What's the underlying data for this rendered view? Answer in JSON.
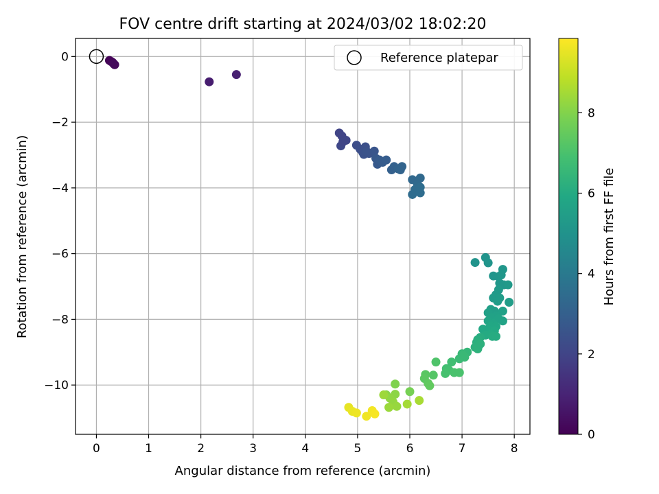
{
  "chart_data": {
    "type": "scatter",
    "title": "FOV centre drift starting at 2024/03/02 18:02:20",
    "xlabel": "Angular distance from reference (arcmin)",
    "ylabel": "Rotation from reference (arcmin)",
    "xlim": [
      -0.4,
      8.3
    ],
    "ylim": [
      -11.5,
      0.55
    ],
    "xticks": [
      "0",
      "1",
      "2",
      "3",
      "4",
      "5",
      "6",
      "7",
      "8"
    ],
    "yticks": [
      "0",
      "−2",
      "−4",
      "−6",
      "−8",
      "−10"
    ],
    "grid": true,
    "legend": {
      "position": "top-right",
      "entries": [
        "Reference platepar"
      ]
    },
    "reference": {
      "x": 0,
      "y": 0
    },
    "colorbar": {
      "label": "Hours from first FF file",
      "colormap": "viridis",
      "range": [
        0,
        9.85
      ],
      "ticks": [
        "0",
        "2",
        "4",
        "6",
        "8"
      ]
    },
    "series": [
      {
        "points": [
          {
            "x": 0.25,
            "y": -0.12,
            "c": 0.05
          },
          {
            "x": 0.28,
            "y": -0.15,
            "c": 0.1
          },
          {
            "x": 0.31,
            "y": -0.18,
            "c": 0.15
          },
          {
            "x": 0.35,
            "y": -0.25,
            "c": 0.2
          },
          {
            "x": 0.33,
            "y": -0.22,
            "c": 0.25
          },
          {
            "x": 2.16,
            "y": -0.77,
            "c": 0.8
          },
          {
            "x": 2.68,
            "y": -0.55,
            "c": 0.9
          },
          {
            "x": 4.65,
            "y": -2.33,
            "c": 2.0
          },
          {
            "x": 4.7,
            "y": -2.42,
            "c": 2.0
          },
          {
            "x": 4.78,
            "y": -2.55,
            "c": 2.05
          },
          {
            "x": 4.68,
            "y": -2.72,
            "c": 2.1
          },
          {
            "x": 4.72,
            "y": -2.6,
            "c": 2.05
          },
          {
            "x": 4.98,
            "y": -2.7,
            "c": 2.3
          },
          {
            "x": 5.05,
            "y": -2.82,
            "c": 2.35
          },
          {
            "x": 5.1,
            "y": -2.92,
            "c": 2.4
          },
          {
            "x": 5.15,
            "y": -2.75,
            "c": 2.4
          },
          {
            "x": 5.12,
            "y": -2.98,
            "c": 2.45
          },
          {
            "x": 5.18,
            "y": -2.9,
            "c": 2.5
          },
          {
            "x": 5.22,
            "y": -2.95,
            "c": 2.5
          },
          {
            "x": 5.32,
            "y": -2.88,
            "c": 2.6
          },
          {
            "x": 5.35,
            "y": -3.1,
            "c": 2.7
          },
          {
            "x": 5.38,
            "y": -3.28,
            "c": 2.75
          },
          {
            "x": 5.42,
            "y": -3.15,
            "c": 2.8
          },
          {
            "x": 5.48,
            "y": -3.22,
            "c": 2.85
          },
          {
            "x": 5.55,
            "y": -3.15,
            "c": 2.9
          },
          {
            "x": 5.65,
            "y": -3.45,
            "c": 3.0
          },
          {
            "x": 5.7,
            "y": -3.35,
            "c": 3.05
          },
          {
            "x": 5.78,
            "y": -3.42,
            "c": 3.1
          },
          {
            "x": 5.82,
            "y": -3.45,
            "c": 3.15
          },
          {
            "x": 5.85,
            "y": -3.35,
            "c": 3.15
          },
          {
            "x": 6.05,
            "y": -3.75,
            "c": 3.3
          },
          {
            "x": 6.2,
            "y": -3.7,
            "c": 3.35
          },
          {
            "x": 6.15,
            "y": -3.9,
            "c": 3.4
          },
          {
            "x": 6.1,
            "y": -4.05,
            "c": 3.45
          },
          {
            "x": 6.05,
            "y": -4.2,
            "c": 3.45
          },
          {
            "x": 6.2,
            "y": -3.98,
            "c": 3.5
          },
          {
            "x": 6.2,
            "y": -4.15,
            "c": 3.5
          },
          {
            "x": 7.25,
            "y": -6.27,
            "c": 5.0
          },
          {
            "x": 7.45,
            "y": -6.12,
            "c": 5.0
          },
          {
            "x": 7.5,
            "y": -6.28,
            "c": 5.05
          },
          {
            "x": 7.6,
            "y": -6.68,
            "c": 5.1
          },
          {
            "x": 7.7,
            "y": -6.7,
            "c": 5.1
          },
          {
            "x": 7.78,
            "y": -6.48,
            "c": 5.15
          },
          {
            "x": 7.75,
            "y": -6.65,
            "c": 5.15
          },
          {
            "x": 7.72,
            "y": -6.9,
            "c": 5.2
          },
          {
            "x": 7.8,
            "y": -6.95,
            "c": 5.2
          },
          {
            "x": 7.88,
            "y": -6.95,
            "c": 5.25
          },
          {
            "x": 7.7,
            "y": -7.1,
            "c": 5.3
          },
          {
            "x": 7.65,
            "y": -7.25,
            "c": 5.3
          },
          {
            "x": 7.6,
            "y": -7.35,
            "c": 5.35
          },
          {
            "x": 7.72,
            "y": -7.35,
            "c": 5.4
          },
          {
            "x": 7.68,
            "y": -7.45,
            "c": 5.4
          },
          {
            "x": 7.9,
            "y": -7.48,
            "c": 5.45
          },
          {
            "x": 7.55,
            "y": -7.7,
            "c": 5.5
          },
          {
            "x": 7.62,
            "y": -7.75,
            "c": 5.5
          },
          {
            "x": 7.5,
            "y": -7.8,
            "c": 5.55
          },
          {
            "x": 7.78,
            "y": -7.75,
            "c": 5.6
          },
          {
            "x": 7.65,
            "y": -7.9,
            "c": 5.6
          },
          {
            "x": 7.55,
            "y": -7.95,
            "c": 5.65
          },
          {
            "x": 7.7,
            "y": -7.98,
            "c": 5.7
          },
          {
            "x": 7.78,
            "y": -8.05,
            "c": 5.7
          },
          {
            "x": 7.5,
            "y": -8.05,
            "c": 5.75
          },
          {
            "x": 7.6,
            "y": -8.12,
            "c": 5.8
          },
          {
            "x": 7.55,
            "y": -8.2,
            "c": 5.85
          },
          {
            "x": 7.65,
            "y": -8.22,
            "c": 5.85
          },
          {
            "x": 7.4,
            "y": -8.3,
            "c": 5.9
          },
          {
            "x": 7.5,
            "y": -8.3,
            "c": 5.9
          },
          {
            "x": 7.62,
            "y": -8.35,
            "c": 5.95
          },
          {
            "x": 7.55,
            "y": -8.45,
            "c": 6.0
          },
          {
            "x": 7.45,
            "y": -8.48,
            "c": 6.0
          },
          {
            "x": 7.58,
            "y": -8.52,
            "c": 6.05
          },
          {
            "x": 7.65,
            "y": -8.52,
            "c": 6.05
          },
          {
            "x": 7.35,
            "y": -8.55,
            "c": 6.1
          },
          {
            "x": 7.3,
            "y": -8.62,
            "c": 6.15
          },
          {
            "x": 7.28,
            "y": -8.7,
            "c": 6.2
          },
          {
            "x": 7.32,
            "y": -8.8,
            "c": 6.2
          },
          {
            "x": 7.25,
            "y": -8.85,
            "c": 6.25
          },
          {
            "x": 7.3,
            "y": -8.9,
            "c": 6.3
          },
          {
            "x": 7.35,
            "y": -8.75,
            "c": 6.25
          },
          {
            "x": 7.1,
            "y": -9.0,
            "c": 6.5
          },
          {
            "x": 7.0,
            "y": -9.05,
            "c": 6.55
          },
          {
            "x": 7.05,
            "y": -9.15,
            "c": 6.6
          },
          {
            "x": 6.95,
            "y": -9.2,
            "c": 6.65
          },
          {
            "x": 7.02,
            "y": -9.1,
            "c": 6.6
          },
          {
            "x": 6.8,
            "y": -9.3,
            "c": 6.8
          },
          {
            "x": 6.7,
            "y": -9.5,
            "c": 6.85
          },
          {
            "x": 6.75,
            "y": -9.55,
            "c": 6.9
          },
          {
            "x": 6.68,
            "y": -9.65,
            "c": 6.95
          },
          {
            "x": 6.85,
            "y": -9.62,
            "c": 7.0
          },
          {
            "x": 6.95,
            "y": -9.62,
            "c": 7.0
          },
          {
            "x": 6.5,
            "y": -9.3,
            "c": 7.1
          },
          {
            "x": 6.45,
            "y": -9.7,
            "c": 7.2
          },
          {
            "x": 6.3,
            "y": -9.68,
            "c": 7.3
          },
          {
            "x": 6.28,
            "y": -9.8,
            "c": 7.35
          },
          {
            "x": 6.35,
            "y": -9.95,
            "c": 7.4
          },
          {
            "x": 6.38,
            "y": -10.02,
            "c": 7.45
          },
          {
            "x": 6.0,
            "y": -10.2,
            "c": 7.8
          },
          {
            "x": 5.72,
            "y": -9.97,
            "c": 7.95
          },
          {
            "x": 5.55,
            "y": -10.3,
            "c": 8.1
          },
          {
            "x": 5.72,
            "y": -10.28,
            "c": 8.15
          },
          {
            "x": 5.62,
            "y": -10.4,
            "c": 8.2
          },
          {
            "x": 5.68,
            "y": -10.52,
            "c": 8.25
          },
          {
            "x": 5.75,
            "y": -10.65,
            "c": 8.3
          },
          {
            "x": 5.6,
            "y": -10.68,
            "c": 8.35
          },
          {
            "x": 5.5,
            "y": -10.3,
            "c": 8.4
          },
          {
            "x": 5.95,
            "y": -10.58,
            "c": 8.5
          },
          {
            "x": 6.18,
            "y": -10.47,
            "c": 8.55
          },
          {
            "x": 4.83,
            "y": -10.68,
            "c": 9.5
          },
          {
            "x": 4.9,
            "y": -10.8,
            "c": 9.55
          },
          {
            "x": 4.98,
            "y": -10.85,
            "c": 9.6
          },
          {
            "x": 5.17,
            "y": -10.95,
            "c": 9.65
          },
          {
            "x": 5.28,
            "y": -10.78,
            "c": 9.7
          },
          {
            "x": 5.33,
            "y": -10.88,
            "c": 9.75
          }
        ]
      }
    ]
  }
}
